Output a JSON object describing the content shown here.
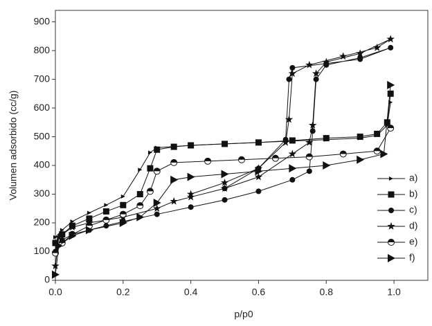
{
  "chart_data": {
    "type": "line",
    "xlabel": "p/p0",
    "ylabel": "Volumen adsorbido (cc/g)",
    "xlim": [
      0,
      1.1
    ],
    "ylim": [
      0,
      940
    ],
    "xticks": [
      {
        "value": 0,
        "label": "0.0"
      },
      0.2,
      0.4,
      0.6,
      0.8,
      {
        "value": 1,
        "label": "1.0"
      }
    ],
    "yticks": [
      0,
      100,
      200,
      300,
      400,
      500,
      600,
      700,
      800,
      900
    ],
    "series": [
      {
        "name": "a)",
        "color": "#111",
        "marker": "arrow",
        "x": [
          0,
          0.02,
          0.05,
          0.1,
          0.15,
          0.2,
          0.25,
          0.28,
          0.3,
          0.4,
          0.5,
          0.6,
          0.7,
          0.8,
          0.9,
          0.95,
          0.98,
          0.99
        ],
        "values": [
          150,
          175,
          205,
          235,
          262,
          292,
          385,
          445,
          462,
          470,
          475,
          480,
          485,
          490,
          495,
          505,
          540,
          620
        ]
      },
      {
        "name": "b)",
        "color": "#111",
        "marker": "square",
        "x": [
          0,
          0.02,
          0.05,
          0.1,
          0.15,
          0.2,
          0.25,
          0.28,
          0.3,
          0.35,
          0.4,
          0.5,
          0.6,
          0.7,
          0.8,
          0.9,
          0.95,
          0.98,
          0.99
        ],
        "values": [
          130,
          160,
          190,
          215,
          240,
          262,
          300,
          390,
          455,
          465,
          470,
          475,
          480,
          487,
          495,
          500,
          510,
          550,
          650
        ]
      },
      {
        "name": "c)",
        "color": "#111",
        "marker": "circle",
        "x": [
          0,
          0.02,
          0.05,
          0.1,
          0.15,
          0.2,
          0.3,
          0.4,
          0.5,
          0.6,
          0.7,
          0.75,
          0.76,
          0.77,
          0.8,
          0.9,
          0.99,
          0.9,
          0.8,
          0.7,
          0.69,
          0.68,
          0.6,
          0.5
        ],
        "values": [
          100,
          140,
          160,
          175,
          190,
          205,
          230,
          255,
          280,
          310,
          350,
          380,
          520,
          700,
          750,
          775,
          810,
          770,
          755,
          740,
          700,
          490,
          390,
          320
        ]
      },
      {
        "name": "d)",
        "color": "#111",
        "marker": "star",
        "x": [
          0,
          0.01,
          0.05,
          0.1,
          0.2,
          0.3,
          0.35,
          0.4,
          0.5,
          0.6,
          0.7,
          0.75,
          0.76,
          0.77,
          0.8,
          0.9,
          0.99,
          0.95,
          0.85,
          0.75,
          0.7,
          0.69,
          0.68,
          0.6,
          0.5,
          0.4
        ],
        "values": [
          50,
          150,
          185,
          200,
          220,
          250,
          275,
          290,
          320,
          360,
          440,
          480,
          540,
          720,
          760,
          790,
          840,
          810,
          780,
          750,
          720,
          560,
          480,
          390,
          340,
          300
        ]
      },
      {
        "name": "e)",
        "color": "#111",
        "marker": "half-circle",
        "x": [
          0,
          0.02,
          0.05,
          0.1,
          0.15,
          0.2,
          0.25,
          0.28,
          0.3,
          0.35,
          0.45,
          0.55,
          0.65,
          0.75,
          0.85,
          0.95,
          0.99
        ],
        "values": [
          95,
          130,
          160,
          190,
          210,
          230,
          260,
          310,
          380,
          410,
          415,
          420,
          425,
          430,
          440,
          450,
          530
        ]
      },
      {
        "name": "f)",
        "color": "#111",
        "marker": "triangle",
        "x": [
          0,
          0.01,
          0.05,
          0.1,
          0.2,
          0.25,
          0.3,
          0.35,
          0.4,
          0.5,
          0.6,
          0.7,
          0.8,
          0.9,
          0.97,
          0.99
        ],
        "values": [
          20,
          120,
          155,
          175,
          200,
          220,
          270,
          350,
          360,
          370,
          380,
          390,
          400,
          420,
          440,
          680
        ]
      }
    ],
    "legend": "right"
  }
}
